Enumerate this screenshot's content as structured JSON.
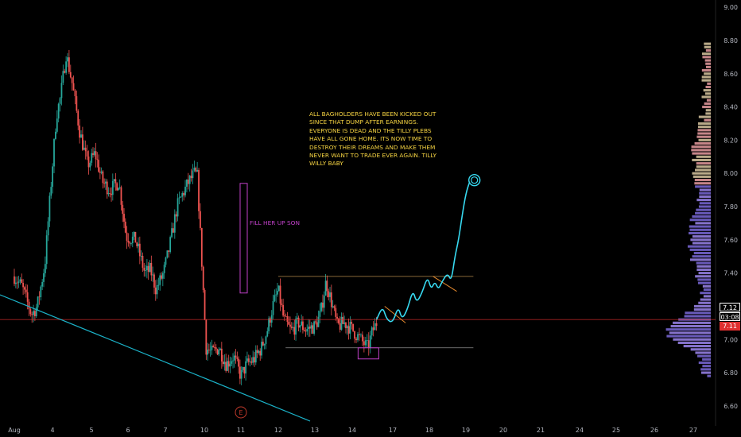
{
  "chart_data": {
    "type": "candlestick",
    "instrument_note": "",
    "x_ticks": [
      "Aug",
      "4",
      "5",
      "6",
      "7",
      "10",
      "11",
      "12",
      "13",
      "14",
      "17",
      "18",
      "19",
      "20",
      "21",
      "24",
      "25",
      "26",
      "27"
    ],
    "y_ticks": [
      "6.60",
      "6.80",
      "7.00",
      "7.20",
      "7.40",
      "7.60",
      "7.80",
      "8.00",
      "8.20",
      "8.40",
      "8.60",
      "8.80",
      "9.00"
    ],
    "ylim": [
      6.48,
      9.02
    ],
    "current_price": "7.12",
    "countdown": "03:08",
    "low_price": "7.11",
    "earnings_marker": "E",
    "annotation_text": "ALL BAGHOLDERS HAVE BEEN KICKED OUT SINCE THAT DUMP AFTER EARNINGS. EVERYONE IS DEAD AND THE TILLY PLEBS HAVE ALL GONE HOME. ITS NOW TIME TO DESTROY THEIR DREAMS AND MAKE THEM NEVER WANT TO TRADE EVER AGAIN. TILLY WILLY BABY",
    "fill_label": "FILL HER UP SON",
    "horizontal_line_price": 7.12,
    "range_top": 7.38,
    "range_bottom": 6.95,
    "price_path": [
      [
        0,
        7.38
      ],
      [
        0.2,
        7.32
      ],
      [
        0.45,
        7.15
      ],
      [
        0.6,
        7.2
      ],
      [
        0.8,
        7.45
      ],
      [
        0.95,
        7.9
      ],
      [
        1.1,
        8.35
      ],
      [
        1.2,
        8.45
      ],
      [
        1.35,
        8.72
      ],
      [
        1.5,
        8.55
      ],
      [
        1.7,
        8.25
      ],
      [
        1.9,
        8.05
      ],
      [
        2.1,
        8.12
      ],
      [
        2.3,
        7.95
      ],
      [
        2.5,
        7.9
      ],
      [
        2.75,
        7.95
      ],
      [
        2.95,
        7.62
      ],
      [
        3.2,
        7.6
      ],
      [
        3.45,
        7.4
      ],
      [
        3.6,
        7.42
      ],
      [
        3.75,
        7.3
      ],
      [
        3.95,
        7.4
      ],
      [
        4.1,
        7.55
      ],
      [
        4.3,
        7.8
      ],
      [
        4.45,
        7.88
      ],
      [
        4.6,
        7.95
      ],
      [
        4.75,
        8.0
      ],
      [
        4.82,
        7.98
      ],
      [
        5.05,
        6.95
      ],
      [
        5.2,
        6.92
      ],
      [
        5.4,
        6.95
      ],
      [
        5.6,
        6.85
      ],
      [
        5.8,
        6.9
      ],
      [
        6.0,
        6.78
      ],
      [
        6.15,
        6.85
      ],
      [
        6.35,
        6.88
      ],
      [
        6.55,
        6.95
      ],
      [
        6.7,
        7.05
      ],
      [
        6.85,
        7.2
      ],
      [
        7.0,
        7.3
      ],
      [
        7.15,
        7.12
      ],
      [
        7.35,
        7.05
      ],
      [
        7.55,
        7.1
      ],
      [
        7.75,
        7.06
      ],
      [
        8.0,
        7.08
      ],
      [
        8.15,
        7.15
      ],
      [
        8.3,
        7.35
      ],
      [
        8.45,
        7.22
      ],
      [
        8.6,
        7.08
      ],
      [
        8.8,
        7.1
      ],
      [
        9.0,
        7.06
      ],
      [
        9.2,
        7.0
      ],
      [
        9.38,
        6.95
      ],
      [
        9.5,
        7.05
      ],
      [
        9.6,
        7.1
      ]
    ],
    "projection_path": [
      [
        9.6,
        7.12
      ],
      [
        9.75,
        7.2
      ],
      [
        9.85,
        7.12
      ],
      [
        10.0,
        7.1
      ],
      [
        10.15,
        7.2
      ],
      [
        10.25,
        7.12
      ],
      [
        10.4,
        7.18
      ],
      [
        10.55,
        7.3
      ],
      [
        10.65,
        7.22
      ],
      [
        10.8,
        7.28
      ],
      [
        10.95,
        7.38
      ],
      [
        11.05,
        7.3
      ],
      [
        11.15,
        7.35
      ],
      [
        11.25,
        7.3
      ],
      [
        11.35,
        7.35
      ],
      [
        11.5,
        7.4
      ],
      [
        11.6,
        7.35
      ],
      [
        11.7,
        7.5
      ],
      [
        11.8,
        7.6
      ],
      [
        11.9,
        7.75
      ],
      [
        12.0,
        7.88
      ],
      [
        12.1,
        7.95
      ]
    ]
  }
}
